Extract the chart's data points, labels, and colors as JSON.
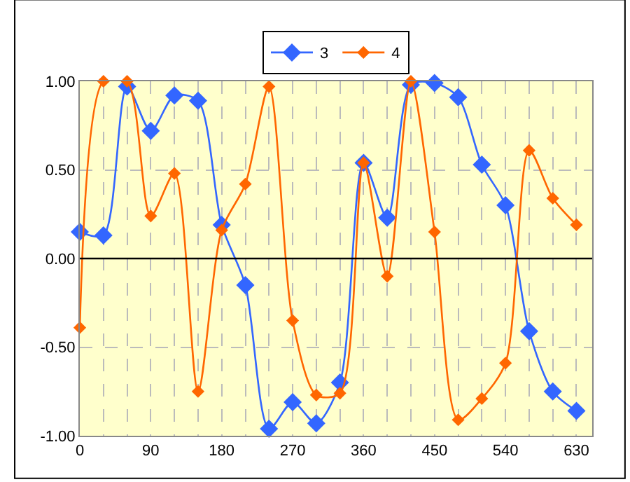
{
  "chart_data": {
    "type": "line",
    "x": [
      0,
      30,
      60,
      90,
      120,
      150,
      180,
      210,
      240,
      270,
      300,
      330,
      360,
      390,
      420,
      450,
      480,
      510,
      540,
      570,
      600,
      630
    ],
    "series": [
      {
        "name": "3",
        "color": "#3366ff",
        "values": [
          0.15,
          0.13,
          0.97,
          0.72,
          0.92,
          0.89,
          0.19,
          -0.15,
          -0.96,
          -0.81,
          -0.93,
          -0.7,
          0.54,
          0.23,
          0.98,
          0.99,
          0.91,
          0.53,
          0.3,
          -0.41,
          -0.75,
          -0.86
        ]
      },
      {
        "name": "4",
        "color": "#ff6600",
        "values": [
          -0.39,
          1.0,
          1.0,
          0.24,
          0.48,
          -0.75,
          0.16,
          0.42,
          0.97,
          -0.35,
          -0.77,
          -0.76,
          0.54,
          -0.1,
          1.0,
          0.15,
          -0.91,
          -0.79,
          -0.59,
          0.61,
          0.34,
          0.19
        ]
      }
    ],
    "xlim": [
      0,
      650
    ],
    "xticks": [
      0,
      {
        "value": 30,
        "label": null
      },
      {
        "value": 60,
        "label": null
      },
      90,
      {
        "value": 120,
        "label": null
      },
      {
        "value": 150,
        "label": null
      },
      180,
      {
        "value": 210,
        "label": null
      },
      {
        "value": 240,
        "label": null
      },
      270,
      {
        "value": 300,
        "label": null
      },
      {
        "value": 330,
        "label": null
      },
      360,
      {
        "value": 390,
        "label": null
      },
      {
        "value": 420,
        "label": null
      },
      450,
      {
        "value": 480,
        "label": null
      },
      {
        "value": 510,
        "label": null
      },
      540,
      {
        "value": 570,
        "label": null
      },
      {
        "value": 600,
        "label": null
      },
      630
    ],
    "ylim": [
      -1,
      1
    ],
    "yticks": [
      {
        "value": -1,
        "label": "-1.00"
      },
      {
        "value": -0.5,
        "label": "-0.50"
      },
      {
        "value": 0,
        "label": "0.00"
      },
      {
        "value": 0.5,
        "label": "0.50"
      },
      {
        "value": 1,
        "label": "1.00"
      }
    ],
    "ref_lines": [
      {
        "axis": "y",
        "value": 0,
        "color": "#000000"
      }
    ],
    "grid": true,
    "legend": "top",
    "marker": "diamond",
    "line_style": "solid"
  }
}
